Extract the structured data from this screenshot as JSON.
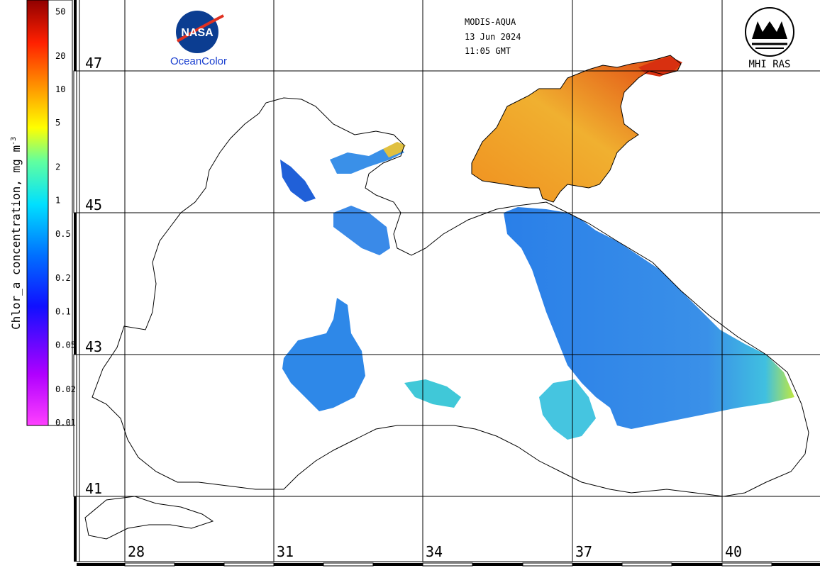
{
  "header": {
    "sensor": "MODIS-AQUA",
    "date": "13 Jun 2024",
    "time": "11:05 GMT"
  },
  "logos": {
    "nasa_text": "NASA",
    "oceancolor": "OceanColor",
    "mhi_text": "MHI RAS"
  },
  "colorbar": {
    "title": "Chlor_a concentration, mg m",
    "title_exponent": "-3",
    "tick_labels": [
      "50",
      "20",
      "10",
      "5",
      "2",
      "1",
      "0.5",
      "0.2",
      "0.1",
      "0.05",
      "0.02",
      "0.01"
    ],
    "tick_values": [
      50,
      20,
      10,
      5,
      2,
      1,
      0.5,
      0.2,
      0.1,
      0.05,
      0.02,
      0.01
    ],
    "range": [
      0.01,
      60
    ],
    "scale": "log",
    "colors": [
      "#ff00ff",
      "#8000ff",
      "#0000ff",
      "#0080ff",
      "#00ffff",
      "#80ff80",
      "#ffff00",
      "#ff8000",
      "#ff0000",
      "#800000"
    ]
  },
  "grid": {
    "lat_labels": [
      "47",
      "45",
      "43",
      "41"
    ],
    "lon_labels": [
      "28",
      "31",
      "34",
      "37",
      "40"
    ]
  },
  "map_colors": {
    "land": "#ffffff",
    "coast": "#000000",
    "sea_blue": "#2f86e6",
    "sea_light": "#3fc0e0",
    "azov": "#f0a020",
    "azov_hot": "#d02010",
    "cloud": "#ffffff"
  }
}
